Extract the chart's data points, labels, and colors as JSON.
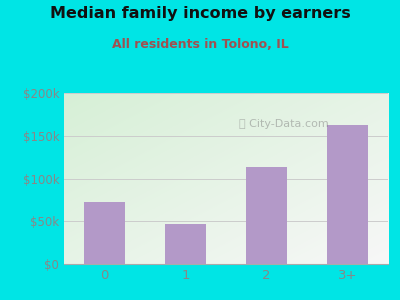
{
  "title": "Median family income by earners",
  "subtitle": "All residents in Tolono, IL",
  "categories": [
    "0",
    "1",
    "2",
    "3+"
  ],
  "values": [
    72000,
    47000,
    113000,
    163000
  ],
  "bar_color": "#b399c8",
  "background_color": "#00e5e5",
  "title_color": "#111111",
  "subtitle_color": "#a05050",
  "tick_color": "#888888",
  "ylim": [
    0,
    200000
  ],
  "yticks": [
    0,
    50000,
    100000,
    150000,
    200000
  ],
  "ytick_labels": [
    "$0",
    "$50k",
    "$100k",
    "$150k",
    "$200k"
  ],
  "grid_color": "#cccccc",
  "watermark": "City-Data.com",
  "figsize": [
    4.0,
    3.0
  ],
  "dpi": 100
}
